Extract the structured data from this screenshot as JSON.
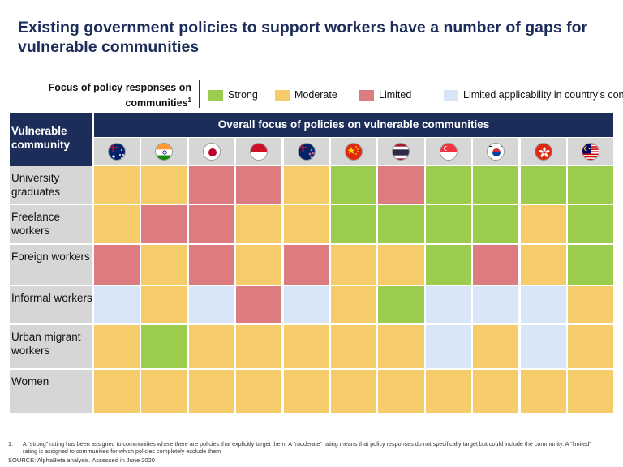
{
  "title": "Existing government policies to support workers have a number of gaps for vulnerable communities",
  "legend": {
    "label": "Focus of policy responses on communities",
    "label_sup": "1",
    "items": [
      {
        "key": "S",
        "label": "Strong"
      },
      {
        "key": "M",
        "label": "Moderate"
      },
      {
        "key": "L",
        "label": "Limited"
      },
      {
        "key": "N",
        "label": "Limited applicability in country’s context"
      }
    ]
  },
  "colors": {
    "S": "#9ccc4e",
    "M": "#f6cb6a",
    "L": "#dc7b80",
    "N": "#d9e6f7",
    "header": "#1c2d5a",
    "label_bg": "#d6d6d6"
  },
  "chart_data": {
    "type": "heatmap",
    "row_header": "Vulnerable community",
    "column_header": "Overall focus of policies on vulnerable communities",
    "columns": [
      {
        "flag": "australia-flag-icon"
      },
      {
        "flag": "india-flag-icon"
      },
      {
        "flag": "japan-flag-icon"
      },
      {
        "flag": "indonesia-flag-icon"
      },
      {
        "flag": "new-zealand-flag-icon"
      },
      {
        "flag": "china-flag-icon"
      },
      {
        "flag": "thailand-flag-icon"
      },
      {
        "flag": "singapore-flag-icon"
      },
      {
        "flag": "south-korea-flag-icon"
      },
      {
        "flag": "hong-kong-flag-icon"
      },
      {
        "flag": "malaysia-flag-icon"
      }
    ],
    "rows": [
      {
        "label": "University graduates",
        "values": [
          "M",
          "M",
          "L",
          "L",
          "M",
          "S",
          "L",
          "S",
          "S",
          "S",
          "S"
        ]
      },
      {
        "label": "Freelance workers",
        "values": [
          "M",
          "L",
          "L",
          "M",
          "M",
          "S",
          "S",
          "S",
          "S",
          "M",
          "S"
        ]
      },
      {
        "label": "Foreign workers",
        "values": [
          "L",
          "M",
          "L",
          "M",
          "L",
          "M",
          "M",
          "S",
          "L",
          "M",
          "S"
        ]
      },
      {
        "label": "Informal workers",
        "values": [
          "N",
          "M",
          "N",
          "L",
          "N",
          "M",
          "S",
          "N",
          "N",
          "N",
          "M"
        ]
      },
      {
        "label": "Urban migrant workers",
        "values": [
          "M",
          "S",
          "M",
          "M",
          "M",
          "M",
          "M",
          "N",
          "M",
          "N",
          "M"
        ]
      },
      {
        "label": "Women",
        "values": [
          "M",
          "M",
          "M",
          "M",
          "M",
          "M",
          "M",
          "M",
          "M",
          "M",
          "M"
        ]
      }
    ]
  },
  "footnote": {
    "number": "1.",
    "text": "A “strong” rating has been assigned to communities where there are policies that explicitly target them. A “moderate” rating means that policy responses do not specifically target but could include the community. A “limited” rating is assigned to communities for which policies completely exclude them"
  },
  "source": "SOURCE: AlphaBeta analysis. Assessed in June 2020"
}
